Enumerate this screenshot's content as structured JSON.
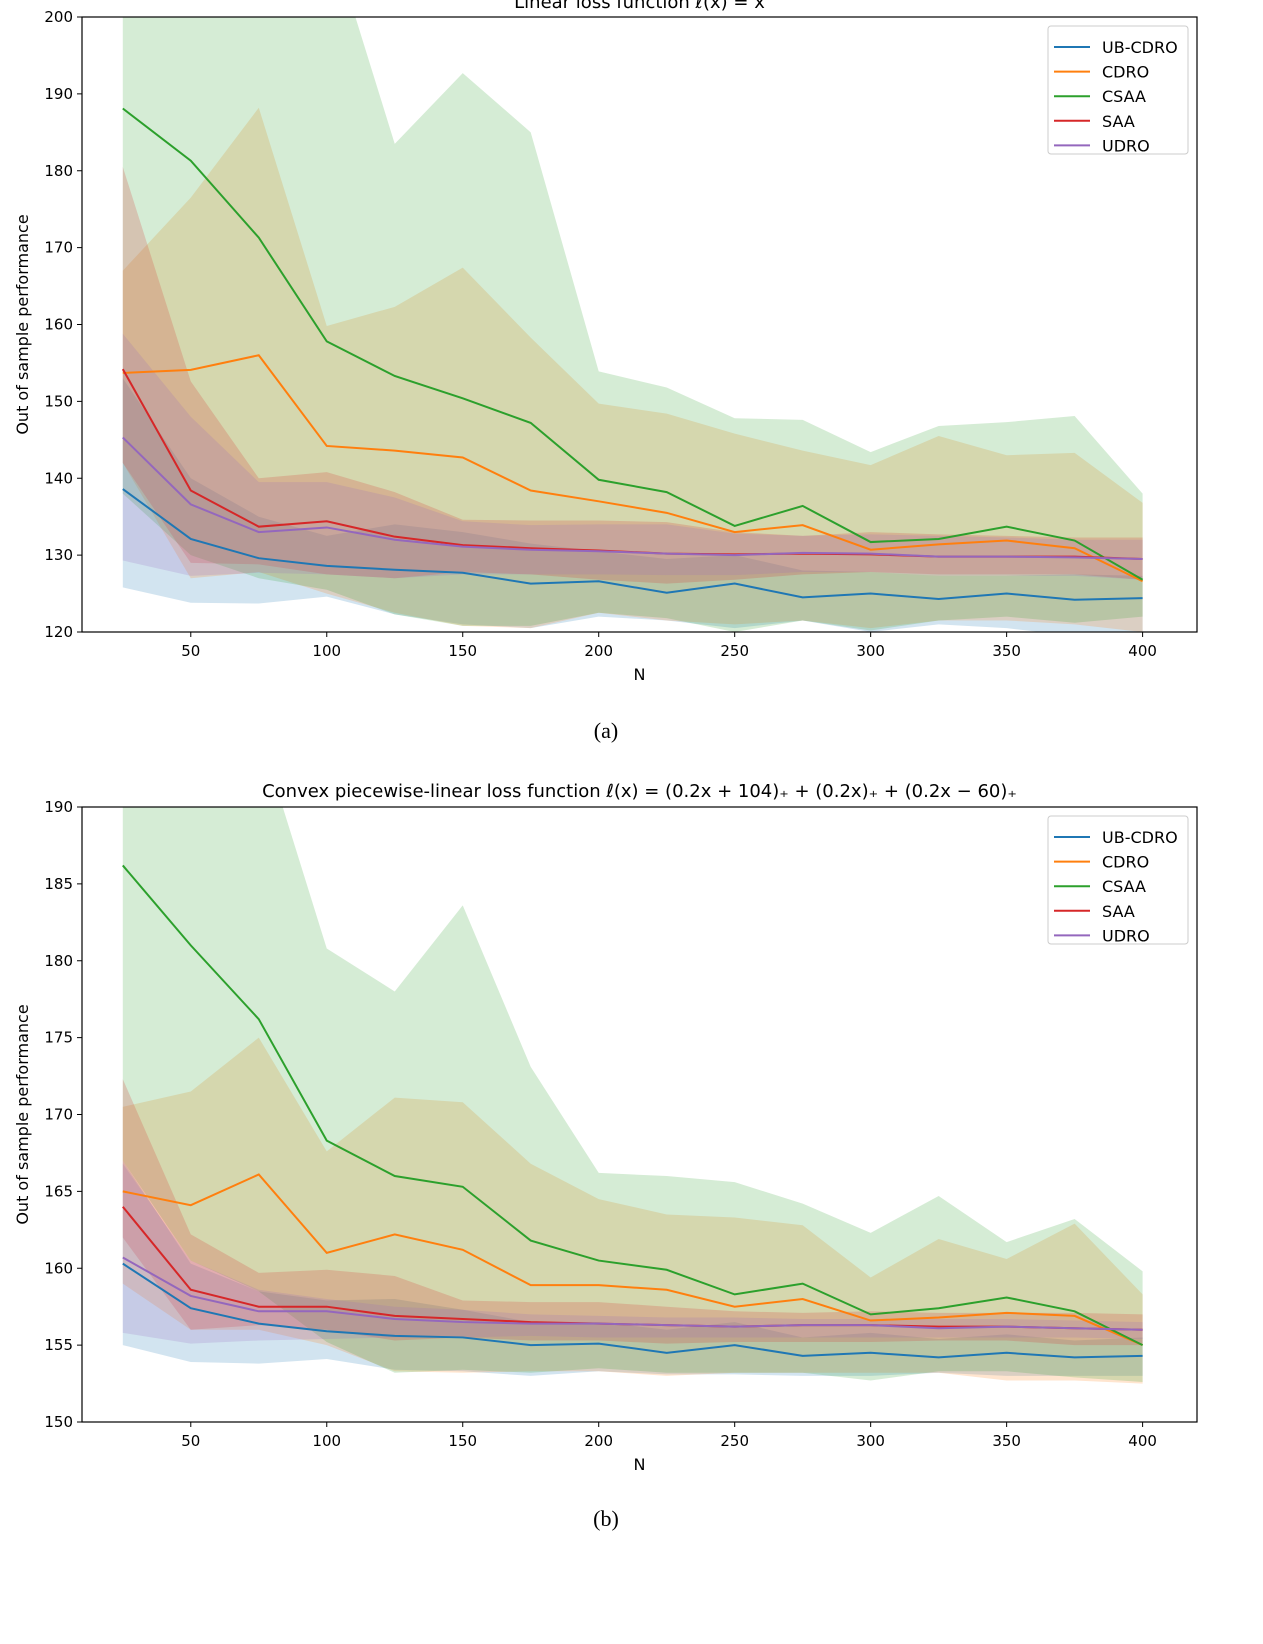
{
  "colors": {
    "UB-CDRO": "#1f77b4",
    "CDRO": "#ff7f0e",
    "CSAA": "#2ca02c",
    "SAA": "#d62728",
    "UDRO": "#9467bd"
  },
  "chart_data": [
    {
      "type": "line",
      "title": "Linear loss function ℓ(x) = x",
      "caption": "(a)",
      "xlabel": "N",
      "ylabel": "Out of sample performance",
      "xlim": [
        10,
        420
      ],
      "ylim": [
        120,
        200
      ],
      "xticks": [
        50,
        100,
        150,
        200,
        250,
        300,
        350,
        400
      ],
      "yticks": [
        120,
        130,
        140,
        150,
        160,
        170,
        180,
        190,
        200
      ],
      "grid": false,
      "legend": "top-right",
      "x": [
        25,
        50,
        75,
        100,
        125,
        150,
        175,
        200,
        225,
        250,
        275,
        300,
        325,
        350,
        375,
        400
      ],
      "series": [
        {
          "name": "UB-CDRO",
          "values": [
            138.6,
            132.1,
            129.6,
            128.6,
            128.1,
            127.7,
            126.3,
            126.6,
            125.1,
            126.3,
            124.5,
            125.0,
            124.3,
            125.0,
            124.2,
            124.4
          ],
          "upper": [
            153,
            140,
            135,
            132.5,
            134,
            133,
            131.5,
            130.5,
            129.5,
            130,
            128,
            127.8,
            127.3,
            127.3,
            127.5,
            127.3
          ],
          "lower": [
            125.8,
            123.8,
            123.7,
            124.6,
            122.3,
            121,
            120.5,
            122,
            121.5,
            120.5,
            121.5,
            120,
            121,
            120.5,
            119.5,
            120
          ]
        },
        {
          "name": "CDRO",
          "values": [
            153.7,
            154.1,
            156.0,
            144.2,
            143.6,
            142.7,
            138.4,
            137.0,
            135.5,
            133.0,
            133.9,
            130.7,
            131.4,
            131.9,
            130.9,
            126.6
          ],
          "upper": [
            167,
            176.5,
            188.2,
            159.8,
            162.3,
            167.4,
            158.3,
            149.7,
            148.4,
            145.8,
            143.6,
            141.7,
            145.5,
            143,
            143.3,
            136.8
          ],
          "lower": [
            142,
            127,
            127.8,
            125,
            122.5,
            120.8,
            120.5,
            122.5,
            121.5,
            121,
            121.5,
            120.5,
            121.5,
            121.5,
            121,
            120
          ]
        },
        {
          "name": "CSAA",
          "values": [
            188.1,
            181.3,
            171.3,
            157.8,
            153.3,
            150.4,
            147.2,
            139.8,
            138.2,
            133.8,
            136.4,
            131.7,
            132.1,
            133.7,
            131.9,
            126.8
          ],
          "upper": [
            225,
            220,
            215,
            212,
            183.5,
            192.7,
            185,
            153.9,
            151.8,
            147.8,
            147.6,
            143.4,
            146.8,
            147.3,
            148.1,
            138
          ],
          "lower": [
            138,
            130,
            127,
            125.5,
            122.3,
            120.8,
            120.8,
            122.5,
            121.8,
            120,
            121.5,
            120.2,
            121.5,
            122,
            121.2,
            122
          ]
        },
        {
          "name": "SAA",
          "values": [
            154.2,
            138.4,
            133.7,
            134.4,
            132.4,
            131.3,
            130.9,
            130.6,
            130.2,
            130.1,
            130.2,
            130.1,
            129.8,
            129.8,
            129.8,
            129.5
          ],
          "upper": [
            180.5,
            152.6,
            140,
            140.8,
            138.2,
            134.6,
            134.5,
            134.5,
            134.3,
            133,
            132.5,
            133,
            132.7,
            132.5,
            132.3,
            132.3
          ],
          "lower": [
            142,
            129,
            128.8,
            127.5,
            127,
            127.8,
            127.5,
            126.8,
            126.3,
            126.8,
            127.5,
            127.8,
            127.5,
            127.5,
            127.5,
            126.8
          ]
        },
        {
          "name": "UDRO",
          "values": [
            145.3,
            136.6,
            133.0,
            133.6,
            132.0,
            131.1,
            130.7,
            130.5,
            130.2,
            130.0,
            130.3,
            130.2,
            129.8,
            129.8,
            129.7,
            129.5
          ],
          "upper": [
            158.8,
            148,
            139.5,
            139.5,
            137.5,
            134.4,
            133.9,
            134,
            134,
            132.8,
            132.5,
            132.7,
            132.5,
            132.3,
            132,
            132
          ],
          "lower": [
            129.3,
            127.3,
            127.7,
            127.5,
            127,
            127.5,
            127.5,
            127.5,
            127.4,
            127.4,
            127.8,
            127.8,
            127.3,
            127.3,
            127.3,
            126.8
          ]
        }
      ]
    },
    {
      "type": "line",
      "title": "Convex piecewise-linear loss function ℓ(x) = (0.2x + 104)₊ + (0.2x)₊ + (0.2x − 60)₊",
      "caption": "(b)",
      "xlabel": "N",
      "ylabel": "Out of sample performance",
      "xlim": [
        10,
        420
      ],
      "ylim": [
        150,
        190
      ],
      "xticks": [
        50,
        100,
        150,
        200,
        250,
        300,
        350,
        400
      ],
      "yticks": [
        150,
        155,
        160,
        165,
        170,
        175,
        180,
        185,
        190
      ],
      "grid": false,
      "legend": "top-right",
      "x": [
        25,
        50,
        75,
        100,
        125,
        150,
        175,
        200,
        225,
        250,
        275,
        300,
        325,
        350,
        375,
        400
      ],
      "series": [
        {
          "name": "UB-CDRO",
          "values": [
            160.3,
            157.4,
            156.4,
            155.9,
            155.6,
            155.5,
            155.0,
            155.1,
            154.5,
            155.0,
            154.3,
            154.5,
            154.2,
            154.5,
            154.2,
            154.3
          ],
          "upper": [
            167,
            160.3,
            158.5,
            157.9,
            158,
            157.3,
            156.5,
            156.5,
            156,
            156.5,
            155.5,
            155.8,
            155.4,
            155.7,
            155.3,
            155.5
          ],
          "lower": [
            155,
            153.9,
            153.8,
            154.1,
            153.4,
            153.3,
            153.0,
            153.3,
            153.1,
            153.1,
            153,
            153,
            153.2,
            153,
            153,
            153
          ]
        },
        {
          "name": "CDRO",
          "values": [
            165.0,
            164.1,
            166.1,
            161.0,
            162.2,
            161.2,
            158.9,
            158.9,
            158.6,
            157.5,
            158.0,
            156.6,
            156.8,
            157.1,
            156.9,
            155.0
          ],
          "upper": [
            170.5,
            171.5,
            175,
            167.6,
            171.1,
            170.8,
            166.8,
            164.5,
            163.5,
            163.3,
            162.8,
            159.4,
            161.9,
            160.6,
            162.9,
            158.3
          ],
          "lower": [
            159,
            156,
            156,
            155,
            153.3,
            153.2,
            153.3,
            153.3,
            153,
            153.2,
            153.2,
            153.2,
            153.2,
            152.7,
            152.7,
            152.5
          ]
        },
        {
          "name": "CSAA",
          "values": [
            186.2,
            181.0,
            176.2,
            168.3,
            166.0,
            165.3,
            161.8,
            160.5,
            159.9,
            158.3,
            159.0,
            157.0,
            157.4,
            158.1,
            157.2,
            155.0
          ],
          "upper": [
            200,
            198,
            195,
            180.8,
            178,
            183.6,
            173.1,
            166.2,
            166,
            165.6,
            164.2,
            162.3,
            164.7,
            161.7,
            163.2,
            159.8
          ],
          "lower": [
            167,
            160.5,
            158.5,
            155.2,
            153.2,
            153.4,
            153.2,
            153.5,
            153.2,
            153.2,
            153.2,
            152.7,
            153.3,
            153.3,
            152.9,
            152.6
          ]
        },
        {
          "name": "SAA",
          "values": [
            164.0,
            158.6,
            157.5,
            157.5,
            156.9,
            156.7,
            156.5,
            156.4,
            156.3,
            156.2,
            156.3,
            156.3,
            156.2,
            156.2,
            156.1,
            156.0
          ],
          "upper": [
            172.3,
            162.2,
            159.7,
            159.9,
            159.5,
            157.9,
            157.8,
            157.8,
            157.5,
            157.2,
            157.1,
            157.2,
            157.1,
            157.1,
            157.1,
            157.0
          ],
          "lower": [
            162,
            156,
            156.3,
            156,
            155.3,
            155.5,
            155.3,
            155.3,
            155.1,
            155.2,
            155.2,
            155.2,
            155.3,
            155.3,
            155,
            155
          ]
        },
        {
          "name": "UDRO",
          "values": [
            160.7,
            158.2,
            157.2,
            157.2,
            156.7,
            156.5,
            156.4,
            156.4,
            156.3,
            156.2,
            156.3,
            156.3,
            156.1,
            156.2,
            156.1,
            156.0
          ],
          "upper": [
            166.8,
            160.5,
            158.6,
            158,
            157.5,
            157.3,
            157,
            156.9,
            156.8,
            156.8,
            156.7,
            156.7,
            156.7,
            156.7,
            156.6,
            156.5
          ],
          "lower": [
            155.8,
            155.1,
            155.3,
            155.4,
            155.5,
            155.5,
            155.6,
            155.5,
            155.5,
            155.5,
            155.5,
            155.5,
            155.5,
            155.5,
            155.5,
            155.4
          ]
        }
      ]
    }
  ]
}
